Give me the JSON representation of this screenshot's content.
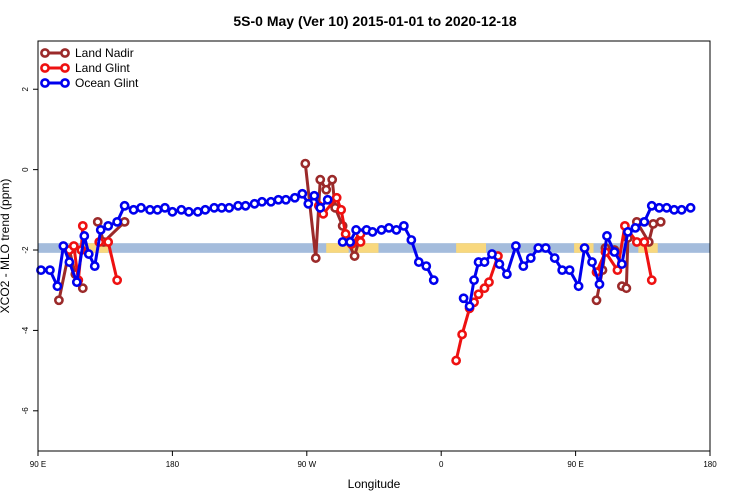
{
  "chart_data": {
    "type": "line",
    "title": "5S-0 May (Ver 10)   2015-01-01 to 2020-12-18",
    "xlabel": "Longitude",
    "ylabel": "XCO2 - MLO trend (ppm)",
    "xticks": [
      {
        "pos": 90,
        "label": "90 E"
      },
      {
        "pos": 180,
        "label": "180"
      },
      {
        "pos": 270,
        "label": "90 W"
      },
      {
        "pos": 360,
        "label": "0"
      },
      {
        "pos": 450,
        "label": "90 E"
      },
      {
        "pos": 540,
        "label": "180"
      }
    ],
    "xlim": [
      90,
      540
    ],
    "ylim": [
      -7,
      3.2
    ],
    "yticks": [
      2,
      0,
      -2,
      -4,
      -6
    ],
    "grid": false,
    "legend_position": "top-left",
    "land_band": {
      "y_center": -1.95,
      "half_height": 0.12,
      "ocean_color": "#a4bcdc",
      "land_color": "#f8d87e",
      "land_segments": [
        [
          120,
          137
        ],
        [
          283,
          298
        ],
        [
          301,
          318
        ],
        [
          370,
          390
        ],
        [
          449,
          462
        ],
        [
          492,
          505
        ]
      ]
    },
    "series": [
      {
        "name": "Land Nadir",
        "color": "#9b2a2a",
        "points": [
          [
            104,
            -3.25
          ],
          [
            111,
            -2.0
          ],
          [
            115,
            -2.6
          ],
          [
            120,
            -2.95
          ],
          [
            130,
            -1.3
          ],
          [
            134,
            -1.8
          ],
          [
            148,
            -1.3
          ],
          [
            269,
            0.15
          ],
          [
            276,
            -2.2
          ],
          [
            279,
            -0.25
          ],
          [
            283,
            -0.5
          ],
          [
            287,
            -0.25
          ],
          [
            289,
            -0.95
          ],
          [
            294,
            -1.4
          ],
          [
            297,
            -1.75
          ],
          [
            302,
            -2.15
          ],
          [
            305,
            -1.75
          ],
          [
            464,
            -3.25
          ],
          [
            468,
            -2.5
          ],
          [
            470,
            -1.95
          ],
          [
            476,
            -2.0
          ],
          [
            481,
            -2.9
          ],
          [
            484,
            -2.95
          ],
          [
            485,
            -1.7
          ],
          [
            491,
            -1.3
          ],
          [
            499,
            -1.8
          ],
          [
            502,
            -1.35
          ],
          [
            507,
            -1.3
          ]
        ],
        "segments": [
          [
            0,
            4
          ],
          [
            4,
            7
          ],
          [
            7,
            17
          ],
          [
            17,
            21
          ],
          [
            21,
            24
          ],
          [
            24,
            28
          ]
        ]
      },
      {
        "name": "Land Glint",
        "color": "#ee1111",
        "points": [
          [
            111,
            -2.0
          ],
          [
            114,
            -1.9
          ],
          [
            117,
            -2.75
          ],
          [
            119,
            -2.0
          ],
          [
            120,
            -1.4
          ],
          [
            131,
            -1.8
          ],
          [
            137,
            -1.8
          ],
          [
            143,
            -2.75
          ],
          [
            278,
            -0.9
          ],
          [
            281,
            -1.1
          ],
          [
            290,
            -0.7
          ],
          [
            293,
            -1.0
          ],
          [
            296,
            -1.6
          ],
          [
            300,
            -1.85
          ],
          [
            306,
            -1.6
          ],
          [
            306,
            -1.8
          ],
          [
            370,
            -4.75
          ],
          [
            374,
            -4.1
          ],
          [
            379,
            -3.45
          ],
          [
            382,
            -3.3
          ],
          [
            385,
            -3.1
          ],
          [
            389,
            -2.95
          ],
          [
            392,
            -2.8
          ],
          [
            398,
            -2.15
          ],
          [
            464,
            -2.55
          ],
          [
            470,
            -2.05
          ],
          [
            478,
            -2.5
          ],
          [
            483,
            -1.4
          ],
          [
            491,
            -1.8
          ],
          [
            496,
            -1.8
          ],
          [
            501,
            -2.75
          ]
        ],
        "segments": [
          [
            0,
            5
          ],
          [
            5,
            8
          ],
          [
            8,
            16
          ],
          [
            16,
            24
          ],
          [
            24,
            31
          ]
        ]
      },
      {
        "name": "Ocean Glint",
        "color": "#0000ee",
        "points": [
          [
            92,
            -2.5
          ],
          [
            98,
            -2.5
          ],
          [
            103,
            -2.9
          ],
          [
            107,
            -1.9
          ],
          [
            111,
            -2.3
          ],
          [
            116,
            -2.8
          ],
          [
            121,
            -1.65
          ],
          [
            124,
            -2.1
          ],
          [
            128,
            -2.4
          ],
          [
            132,
            -1.5
          ],
          [
            137,
            -1.4
          ],
          [
            143,
            -1.3
          ],
          [
            148,
            -0.9
          ],
          [
            154,
            -1.0
          ],
          [
            159,
            -0.95
          ],
          [
            165,
            -1.0
          ],
          [
            170,
            -1.0
          ],
          [
            175,
            -0.95
          ],
          [
            180,
            -1.05
          ],
          [
            186,
            -1.0
          ],
          [
            191,
            -1.05
          ],
          [
            197,
            -1.05
          ],
          [
            202,
            -1.0
          ],
          [
            208,
            -0.95
          ],
          [
            213,
            -0.95
          ],
          [
            218,
            -0.95
          ],
          [
            224,
            -0.9
          ],
          [
            229,
            -0.9
          ],
          [
            235,
            -0.85
          ],
          [
            240,
            -0.8
          ],
          [
            246,
            -0.8
          ],
          [
            251,
            -0.75
          ],
          [
            256,
            -0.75
          ],
          [
            262,
            -0.7
          ],
          [
            267,
            -0.6
          ],
          [
            271,
            -0.85
          ],
          [
            275,
            -0.65
          ],
          [
            279,
            -0.95
          ],
          [
            284,
            -0.75
          ],
          [
            294,
            -1.8
          ],
          [
            299,
            -1.8
          ],
          [
            303,
            -1.5
          ],
          [
            310,
            -1.5
          ],
          [
            314,
            -1.55
          ],
          [
            320,
            -1.5
          ],
          [
            325,
            -1.45
          ],
          [
            330,
            -1.5
          ],
          [
            335,
            -1.4
          ],
          [
            340,
            -1.75
          ],
          [
            345,
            -2.3
          ],
          [
            350,
            -2.4
          ],
          [
            355,
            -2.75
          ],
          [
            375,
            -3.2
          ],
          [
            379,
            -3.4
          ],
          [
            382,
            -2.75
          ],
          [
            385,
            -2.3
          ],
          [
            389,
            -2.3
          ],
          [
            394,
            -2.1
          ],
          [
            399,
            -2.35
          ],
          [
            404,
            -2.6
          ],
          [
            410,
            -1.9
          ],
          [
            415,
            -2.4
          ],
          [
            420,
            -2.2
          ],
          [
            425,
            -1.95
          ],
          [
            430,
            -1.95
          ],
          [
            436,
            -2.2
          ],
          [
            441,
            -2.5
          ],
          [
            446,
            -2.5
          ],
          [
            452,
            -2.9
          ],
          [
            456,
            -1.95
          ],
          [
            461,
            -2.3
          ],
          [
            466,
            -2.85
          ],
          [
            471,
            -1.65
          ],
          [
            476,
            -2.05
          ],
          [
            481,
            -2.35
          ],
          [
            485,
            -1.55
          ],
          [
            490,
            -1.45
          ],
          [
            496,
            -1.3
          ],
          [
            501,
            -0.9
          ],
          [
            506,
            -0.95
          ],
          [
            511,
            -0.95
          ],
          [
            516,
            -1.0
          ],
          [
            521,
            -1.0
          ],
          [
            527,
            -0.95
          ]
        ],
        "segments": [
          [
            0,
            39
          ],
          [
            39,
            52
          ],
          [
            52,
            84
          ]
        ]
      }
    ]
  }
}
